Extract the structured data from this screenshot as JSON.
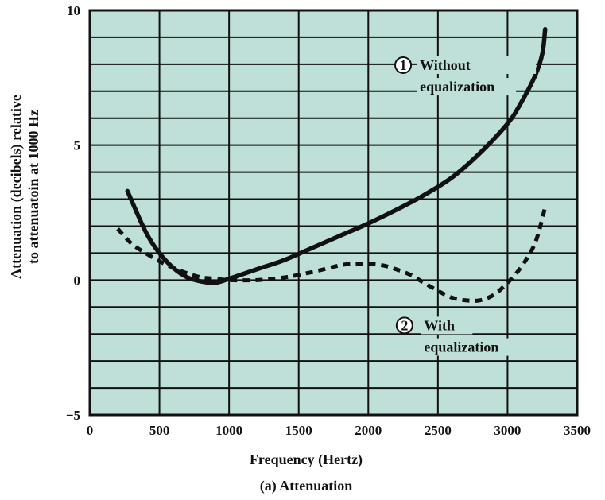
{
  "chart_data": {
    "type": "line",
    "title": "",
    "caption": "(a) Attenuation",
    "xlabel": "Frequency (Hertz)",
    "ylabel_lines": [
      "Attenuation (decibels) relative",
      "to attenuatoin at 1000 Hz"
    ],
    "xlim": [
      0,
      3500
    ],
    "ylim": [
      -5,
      10
    ],
    "x_ticks": [
      0,
      500,
      1000,
      1500,
      2000,
      2500,
      3000,
      3500
    ],
    "y_ticks_labeled": [
      -5,
      0,
      5,
      10
    ],
    "y_ticks_labels": [
      "−5",
      "0",
      "5",
      "10"
    ],
    "grid": true,
    "background_color": "#bfe0d8",
    "line_color": "#111111",
    "series": [
      {
        "style": "solid",
        "label_number": "1",
        "label_lines": [
          "Without",
          "equalization"
        ],
        "x": [
          270,
          400,
          500,
          600,
          700,
          800,
          900,
          1000,
          1200,
          1400,
          1600,
          1800,
          2000,
          2200,
          2400,
          2600,
          2800,
          3000,
          3100,
          3200,
          3250,
          3270
        ],
        "y": [
          3.3,
          1.8,
          1.0,
          0.45,
          0.1,
          -0.05,
          -0.1,
          0.05,
          0.4,
          0.75,
          1.2,
          1.65,
          2.1,
          2.6,
          3.15,
          3.8,
          4.7,
          5.8,
          6.6,
          7.6,
          8.4,
          9.3
        ]
      },
      {
        "style": "dashed",
        "label_number": "2",
        "label_lines": [
          "With",
          "equalization"
        ],
        "x": [
          200,
          300,
          400,
          500,
          600,
          700,
          800,
          900,
          1000,
          1200,
          1400,
          1600,
          1800,
          1900,
          2000,
          2100,
          2200,
          2300,
          2400,
          2500,
          2600,
          2700,
          2800,
          2900,
          3000,
          3100,
          3200,
          3270
        ],
        "y": [
          1.9,
          1.35,
          1.0,
          0.7,
          0.45,
          0.25,
          0.1,
          0.05,
          0.0,
          0.0,
          0.1,
          0.3,
          0.55,
          0.6,
          0.6,
          0.55,
          0.4,
          0.2,
          -0.1,
          -0.4,
          -0.65,
          -0.75,
          -0.75,
          -0.55,
          -0.1,
          0.5,
          1.4,
          2.7
        ]
      }
    ]
  }
}
